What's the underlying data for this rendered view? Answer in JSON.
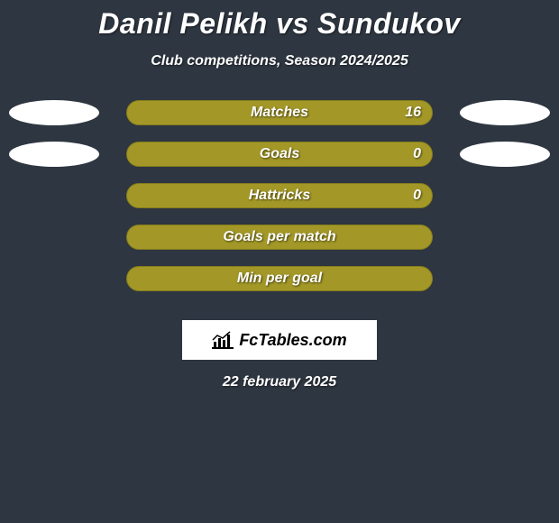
{
  "title": "Danil Pelikh vs Sundukov",
  "subtitle": "Club competitions, Season 2024/2025",
  "brand": "FcTables.com",
  "date": "22 february 2025",
  "colors": {
    "background": "#2e3641",
    "bar_fill": "#a39827",
    "bar_border": "#867c1d",
    "ellipse": "#ffffff",
    "text": "#ffffff"
  },
  "ellipse_rows": [
    0,
    1
  ],
  "stats": [
    {
      "label": "Matches",
      "value": "16",
      "show_value": true
    },
    {
      "label": "Goals",
      "value": "0",
      "show_value": true
    },
    {
      "label": "Hattricks",
      "value": "0",
      "show_value": true
    },
    {
      "label": "Goals per match",
      "value": "",
      "show_value": false
    },
    {
      "label": "Min per goal",
      "value": "",
      "show_value": false
    }
  ]
}
